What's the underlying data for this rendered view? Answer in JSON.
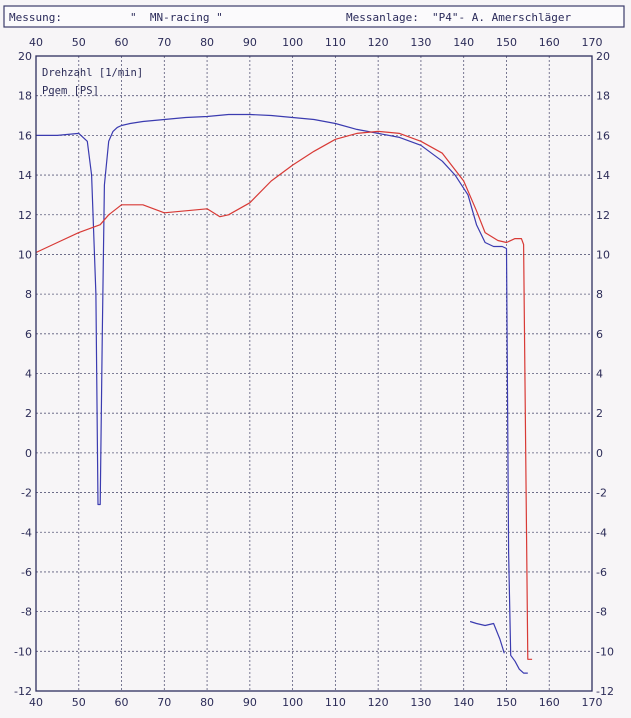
{
  "header": {
    "messung_label": "Messung:",
    "messung_value": "\"  MN-racing \"",
    "anlage_label": "Messanlage:",
    "anlage_value": "\"P4\"- A. Amerschläger"
  },
  "chart_data": {
    "type": "line",
    "xlim": [
      40,
      170
    ],
    "ylim": [
      -12,
      20
    ],
    "x_ticks": [
      40,
      50,
      60,
      70,
      80,
      90,
      100,
      110,
      120,
      130,
      140,
      150,
      160,
      170
    ],
    "y_ticks": [
      -12,
      -10,
      -8,
      -6,
      -4,
      -2,
      0,
      2,
      4,
      6,
      8,
      10,
      12,
      14,
      16,
      18,
      20
    ],
    "grid": true,
    "legend_position": "top-left",
    "series": [
      {
        "name": "Drehzahl [1/min]",
        "color": "#3b3bb0",
        "x": [
          40,
          45,
          50,
          52,
          53,
          54,
          54.5,
          55,
          55.5,
          56,
          57,
          58,
          59,
          60,
          62,
          65,
          70,
          75,
          80,
          85,
          90,
          95,
          100,
          105,
          110,
          115,
          120,
          125,
          130,
          135,
          138,
          141,
          143,
          145,
          147,
          149,
          150,
          150.5,
          151,
          152,
          153,
          154,
          155
        ],
        "y": [
          16,
          16,
          16.1,
          15.7,
          14,
          8,
          -2.6,
          -2.6,
          6,
          13.5,
          15.7,
          16.2,
          16.4,
          16.5,
          16.6,
          16.7,
          16.8,
          16.9,
          16.95,
          17.05,
          17.05,
          17,
          16.9,
          16.8,
          16.6,
          16.3,
          16.1,
          15.9,
          15.5,
          14.7,
          14,
          13,
          11.5,
          10.6,
          10.4,
          10.4,
          10.3,
          -5,
          -10.2,
          -10.5,
          -10.9,
          -11.1,
          -11.1
        ]
      },
      {
        "name": "Pgem [PS]",
        "color": "#d83a36",
        "x": [
          40,
          45,
          50,
          55,
          57,
          60,
          65,
          70,
          75,
          80,
          83,
          85,
          90,
          95,
          100,
          105,
          110,
          115,
          120,
          125,
          130,
          135,
          140,
          143,
          145,
          148,
          150,
          152,
          153.5,
          154,
          155,
          156
        ],
        "y": [
          10.1,
          10.6,
          11.1,
          11.5,
          12,
          12.5,
          12.5,
          12.1,
          12.2,
          12.3,
          11.9,
          12,
          12.6,
          13.7,
          14.5,
          15.2,
          15.8,
          16.1,
          16.2,
          16.1,
          15.7,
          15.1,
          13.7,
          12.2,
          11.1,
          10.7,
          10.6,
          10.8,
          10.8,
          10.5,
          -10.4,
          -10.4
        ]
      },
      {
        "name": "",
        "color": "#3b3bb0",
        "x": [
          141.5,
          143,
          145,
          147,
          148.5,
          149.5
        ],
        "y": [
          -8.5,
          -8.6,
          -8.7,
          -8.6,
          -9.4,
          -10.1
        ]
      }
    ]
  }
}
